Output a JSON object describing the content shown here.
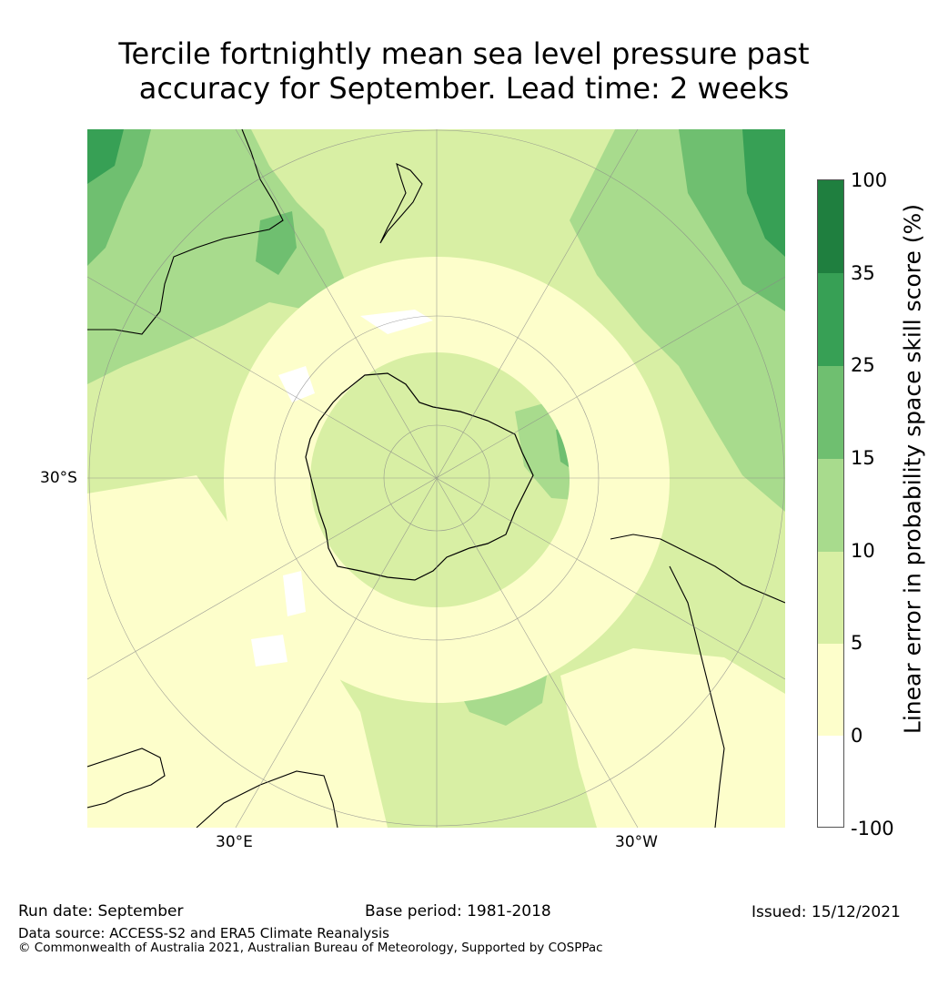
{
  "title_line1": "Tercile fortnightly mean sea level pressure past",
  "title_line2": "accuracy for September. Lead time: 2 weeks",
  "map": {
    "lat_label": "30°S",
    "lon_labels": [
      "30°E",
      "30°W"
    ]
  },
  "colorbar": {
    "label": "Linear error in probability space skill score (%)",
    "ticks": [
      "100",
      "35",
      "25",
      "15",
      "10",
      "5",
      "0",
      "-100"
    ],
    "colors": [
      "#1f7f3f",
      "#37a055",
      "#6fbf70",
      "#a8db8d",
      "#d8efa4",
      "#fdfecb",
      "#ffffff"
    ]
  },
  "footer": {
    "run_date": "Run date: September",
    "base_period": "Base period: 1981-2018",
    "issued": "Issued: 15/12/2021",
    "data_source": "Data source: ACCESS-S2 and ERA5 Climate Reanalysis",
    "copyright": "© Commonwealth of Australia 2021, Australian Bureau of Meteorology, Supported by COSPPac"
  }
}
